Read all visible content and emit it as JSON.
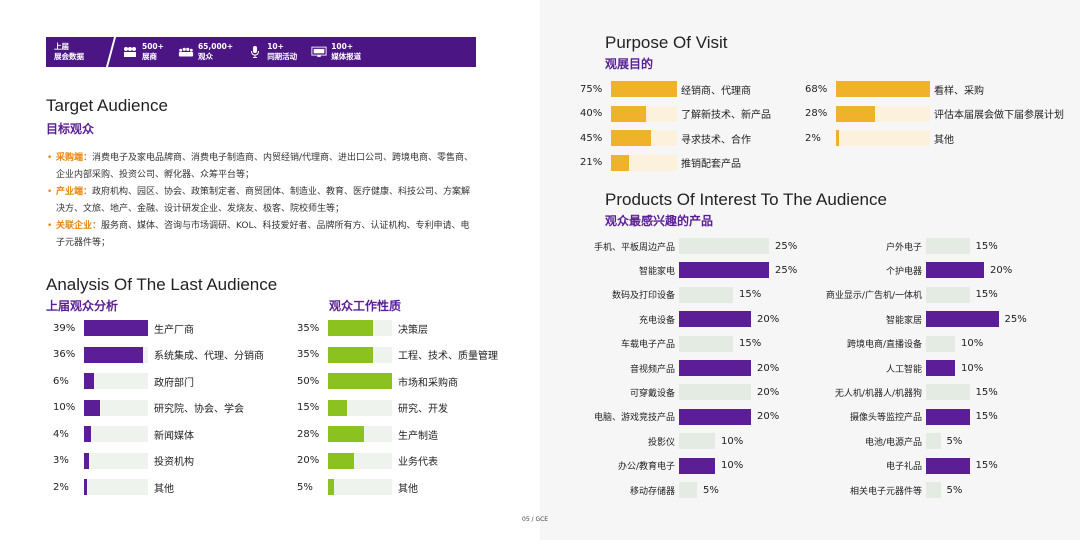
{
  "banner": {
    "first": [
      "上届",
      "展会数据"
    ],
    "stats": [
      {
        "icon": "people-icon",
        "value": "500+",
        "label": "展商"
      },
      {
        "icon": "crowd-icon",
        "value": "65,000+",
        "label": "观众"
      },
      {
        "icon": "microphone-icon",
        "value": "10+",
        "label": "同期活动"
      },
      {
        "icon": "monitor-icon",
        "value": "100+",
        "label": "媒体报道"
      }
    ]
  },
  "target": {
    "title_en": "Target Audience",
    "title_cn": "目标观众",
    "items": [
      {
        "key": "采购端：",
        "text": "消费电子及家电品牌商、消费电子制造商、内贸经销/代理商、进出口公司、跨境电商、零售商、企业内部采购、投资公司、孵化器、众筹平台等；"
      },
      {
        "key": "产业端：",
        "text": "政府机构、园区、协会、政策制定者、商贸团体、制造业、教育、医疗健康、科技公司、方案解决方、文旅、地产、金融、设计研发企业、发烧友、极客、院校师生等；"
      },
      {
        "key": "关联企业：",
        "text": "服务商、媒体、咨询与市场调研、KOL、科技爱好者、品牌所有方、认证机构、专利申请、电子元器件等；"
      }
    ]
  },
  "analysis": {
    "title_en": "Analysis Of The Last Audience",
    "left_title": "上届观众分析",
    "right_title": "观众工作性质",
    "colors": {
      "purple": "#5b1e96",
      "green": "#8cc21f",
      "orange": "#f0b22a",
      "track": "#eef3ee"
    },
    "left_rows": [
      {
        "pct": "39%",
        "value": 39,
        "label": "生产厂商"
      },
      {
        "pct": "36%",
        "value": 36,
        "label": "系统集成、代理、分销商"
      },
      {
        "pct": "6%",
        "value": 6,
        "label": "政府部门"
      },
      {
        "pct": "10%",
        "value": 10,
        "label": "研究院、协会、学会"
      },
      {
        "pct": "4%",
        "value": 4,
        "label": "新闻媒体"
      },
      {
        "pct": "3%",
        "value": 3,
        "label": "投资机构"
      },
      {
        "pct": "2%",
        "value": 2,
        "label": "其他"
      }
    ],
    "right_rows": [
      {
        "pct": "35%",
        "value": 35,
        "label": "决策层"
      },
      {
        "pct": "35%",
        "value": 35,
        "label": "工程、技术、质量管理"
      },
      {
        "pct": "50%",
        "value": 50,
        "label": "市场和采购商"
      },
      {
        "pct": "15%",
        "value": 15,
        "label": "研究、开发"
      },
      {
        "pct": "28%",
        "value": 28,
        "label": "生产制造"
      },
      {
        "pct": "20%",
        "value": 20,
        "label": "业务代表"
      },
      {
        "pct": "5%",
        "value": 5,
        "label": "其他"
      }
    ]
  },
  "purpose": {
    "title_en": "Purpose Of Visit",
    "title_cn": "观展目的",
    "left_rows": [
      {
        "pct": "75%",
        "value": 75,
        "label": "经销商、代理商"
      },
      {
        "pct": "40%",
        "value": 40,
        "label": "了解新技术、新产品"
      },
      {
        "pct": "45%",
        "value": 45,
        "label": "寻求技术、合作"
      },
      {
        "pct": "21%",
        "value": 21,
        "label": "推销配套产品"
      }
    ],
    "right_rows": [
      {
        "pct": "68%",
        "value": 68,
        "label": "看样、采购"
      },
      {
        "pct": "28%",
        "value": 28,
        "label": "评估本届展会做下届参展计划"
      },
      {
        "pct": "2%",
        "value": 2,
        "label": "其他"
      }
    ]
  },
  "products": {
    "title_en": "Products Of Interest To The Audience",
    "title_cn": "观众最感兴趣的产品",
    "left_rows": [
      {
        "label": "手机、平板周边产品",
        "pct": "25%",
        "value": 25,
        "highlight": false
      },
      {
        "label": "智能家电",
        "pct": "25%",
        "value": 25,
        "highlight": true
      },
      {
        "label": "数码及打印设备",
        "pct": "15%",
        "value": 15,
        "highlight": false
      },
      {
        "label": "充电设备",
        "pct": "20%",
        "value": 20,
        "highlight": true
      },
      {
        "label": "车载电子产品",
        "pct": "15%",
        "value": 15,
        "highlight": false
      },
      {
        "label": "音视频产品",
        "pct": "20%",
        "value": 20,
        "highlight": true
      },
      {
        "label": "可穿戴设备",
        "pct": "20%",
        "value": 20,
        "highlight": false
      },
      {
        "label": "电脑、游戏竞技产品",
        "pct": "20%",
        "value": 20,
        "highlight": true
      },
      {
        "label": "投影仪",
        "pct": "10%",
        "value": 10,
        "highlight": false
      },
      {
        "label": "办公/教育电子",
        "pct": "10%",
        "value": 10,
        "highlight": true
      },
      {
        "label": "移动存储器",
        "pct": "5%",
        "value": 5,
        "highlight": false
      }
    ],
    "right_rows": [
      {
        "label": "户外电子",
        "pct": "15%",
        "value": 15,
        "highlight": false
      },
      {
        "label": "个护电器",
        "pct": "20%",
        "value": 20,
        "highlight": true
      },
      {
        "label": "商业显示/广告机/一体机",
        "pct": "15%",
        "value": 15,
        "highlight": false
      },
      {
        "label": "智能家居",
        "pct": "25%",
        "value": 25,
        "highlight": true
      },
      {
        "label": "跨境电商/直播设备",
        "pct": "10%",
        "value": 10,
        "highlight": false
      },
      {
        "label": "人工智能",
        "pct": "10%",
        "value": 10,
        "highlight": true
      },
      {
        "label": "无人机/机器人/机器狗",
        "pct": "15%",
        "value": 15,
        "highlight": false
      },
      {
        "label": "摄像头等监控产品",
        "pct": "15%",
        "value": 15,
        "highlight": true
      },
      {
        "label": "电池/电源产品",
        "pct": "5%",
        "value": 5,
        "highlight": false
      },
      {
        "label": "电子礼品",
        "pct": "15%",
        "value": 15,
        "highlight": true
      },
      {
        "label": "相关电子元器件等",
        "pct": "5%",
        "value": 5,
        "highlight": false
      }
    ]
  },
  "footer": "05 / GCE"
}
